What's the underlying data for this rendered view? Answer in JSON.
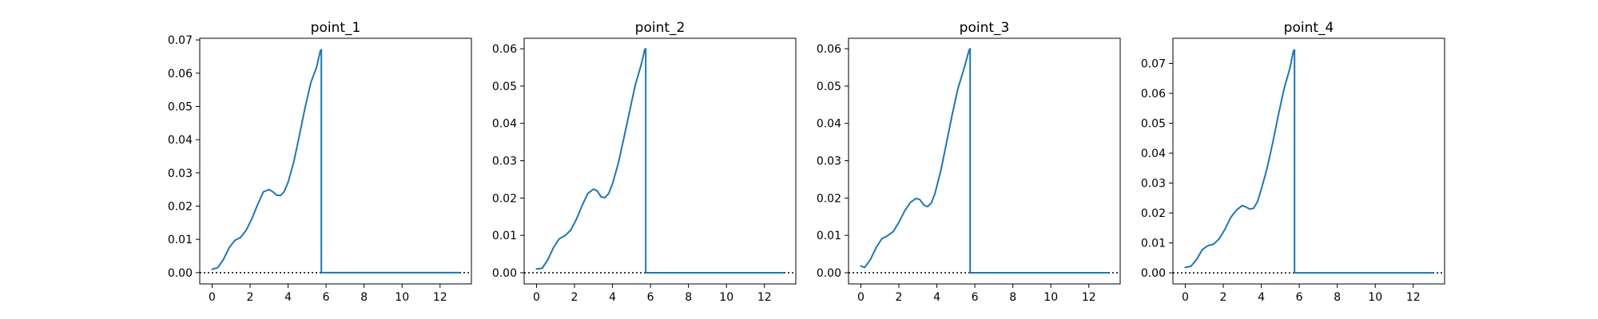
{
  "chart_data": [
    {
      "type": "line",
      "title": "point_1",
      "xlabel": "",
      "ylabel": "",
      "xlim": [
        -0.65,
        13.65
      ],
      "ylim": [
        -0.0034,
        0.0705
      ],
      "xticks": [
        0,
        2,
        4,
        6,
        8,
        10,
        12
      ],
      "yticks": [
        0.0,
        0.01,
        0.02,
        0.03,
        0.04,
        0.05,
        0.06,
        0.07
      ],
      "ytick_labels": [
        "0.00",
        "0.01",
        "0.02",
        "0.03",
        "0.04",
        "0.05",
        "0.06",
        "0.07"
      ],
      "reference_line": {
        "y": 0,
        "style": "dotted",
        "color": "#000000"
      },
      "grid": false,
      "series": [
        {
          "color": "#1f77b4",
          "x": [
            0.0,
            0.3,
            0.6,
            0.9,
            1.2,
            1.5,
            1.8,
            2.1,
            2.4,
            2.7,
            3.0,
            3.2,
            3.4,
            3.6,
            3.8,
            4.0,
            4.3,
            4.6,
            4.9,
            5.2,
            5.5,
            5.7,
            5.75,
            5.75,
            6.5,
            8.0,
            10.0,
            12.0,
            13.0
          ],
          "values": [
            0.001,
            0.0015,
            0.004,
            0.0075,
            0.0097,
            0.0106,
            0.0128,
            0.0163,
            0.0205,
            0.0243,
            0.025,
            0.0243,
            0.0233,
            0.0232,
            0.0244,
            0.0272,
            0.0333,
            0.0414,
            0.0498,
            0.0572,
            0.0618,
            0.0668,
            0.067,
            0.0,
            0.0,
            0.0,
            0.0,
            0.0,
            0.0
          ]
        }
      ]
    },
    {
      "type": "line",
      "title": "point_2",
      "xlabel": "",
      "ylabel": "",
      "xlim": [
        -0.65,
        13.65
      ],
      "ylim": [
        -0.003,
        0.0628
      ],
      "xticks": [
        0,
        2,
        4,
        6,
        8,
        10,
        12
      ],
      "yticks": [
        0.0,
        0.01,
        0.02,
        0.03,
        0.04,
        0.05,
        0.06
      ],
      "ytick_labels": [
        "0.00",
        "0.01",
        "0.02",
        "0.03",
        "0.04",
        "0.05",
        "0.06"
      ],
      "reference_line": {
        "y": 0,
        "style": "dotted",
        "color": "#000000"
      },
      "grid": false,
      "series": [
        {
          "color": "#1f77b4",
          "x": [
            0.0,
            0.3,
            0.6,
            0.9,
            1.2,
            1.5,
            1.8,
            2.1,
            2.4,
            2.7,
            3.0,
            3.2,
            3.4,
            3.6,
            3.8,
            4.0,
            4.3,
            4.6,
            4.9,
            5.2,
            5.5,
            5.7,
            5.75,
            5.75,
            6.5,
            8.0,
            10.0,
            12.0,
            13.0
          ],
          "values": [
            0.001,
            0.0012,
            0.0035,
            0.0068,
            0.0091,
            0.0099,
            0.0114,
            0.0143,
            0.018,
            0.0212,
            0.0224,
            0.0219,
            0.0203,
            0.0201,
            0.0212,
            0.0238,
            0.0292,
            0.0361,
            0.0432,
            0.0503,
            0.0555,
            0.0598,
            0.06,
            0.0,
            0.0,
            0.0,
            0.0,
            0.0,
            0.0
          ]
        }
      ]
    },
    {
      "type": "line",
      "title": "point_3",
      "xlabel": "",
      "ylabel": "",
      "xlim": [
        -0.65,
        13.65
      ],
      "ylim": [
        -0.003,
        0.0628
      ],
      "xticks": [
        0,
        2,
        4,
        6,
        8,
        10,
        12
      ],
      "yticks": [
        0.0,
        0.01,
        0.02,
        0.03,
        0.04,
        0.05,
        0.06
      ],
      "ytick_labels": [
        "0.00",
        "0.01",
        "0.02",
        "0.03",
        "0.04",
        "0.05",
        "0.06"
      ],
      "reference_line": {
        "y": 0,
        "style": "dotted",
        "color": "#000000"
      },
      "grid": false,
      "series": [
        {
          "color": "#1f77b4",
          "x": [
            0.0,
            0.2,
            0.5,
            0.8,
            1.1,
            1.4,
            1.7,
            2.0,
            2.3,
            2.6,
            2.9,
            3.1,
            3.3,
            3.5,
            3.7,
            3.9,
            4.2,
            4.5,
            4.8,
            5.1,
            5.4,
            5.7,
            5.75,
            5.75,
            6.5,
            8.0,
            10.0,
            12.0,
            13.0
          ],
          "values": [
            0.0018,
            0.0014,
            0.0035,
            0.0067,
            0.0091,
            0.0099,
            0.011,
            0.0135,
            0.0165,
            0.0188,
            0.0199,
            0.0196,
            0.0182,
            0.0177,
            0.0186,
            0.0212,
            0.0272,
            0.0346,
            0.0422,
            0.0492,
            0.0542,
            0.0597,
            0.06,
            0.0,
            0.0,
            0.0,
            0.0,
            0.0,
            0.0
          ]
        }
      ]
    },
    {
      "type": "line",
      "title": "point_4",
      "xlabel": "",
      "ylabel": "",
      "xlim": [
        -0.65,
        13.65
      ],
      "ylim": [
        -0.0037,
        0.0784
      ],
      "xticks": [
        0,
        2,
        4,
        6,
        8,
        10,
        12
      ],
      "yticks": [
        0.0,
        0.01,
        0.02,
        0.03,
        0.04,
        0.05,
        0.06,
        0.07
      ],
      "ytick_labels": [
        "0.00",
        "0.01",
        "0.02",
        "0.03",
        "0.04",
        "0.05",
        "0.06",
        "0.07"
      ],
      "reference_line": {
        "y": 0,
        "style": "dotted",
        "color": "#000000"
      },
      "grid": false,
      "series": [
        {
          "color": "#1f77b4",
          "x": [
            0.0,
            0.3,
            0.6,
            0.9,
            1.2,
            1.5,
            1.8,
            2.1,
            2.4,
            2.7,
            3.0,
            3.2,
            3.4,
            3.6,
            3.8,
            4.0,
            4.3,
            4.6,
            4.9,
            5.2,
            5.5,
            5.7,
            5.75,
            5.75,
            6.5,
            8.0,
            10.0,
            12.0,
            13.0
          ],
          "values": [
            0.0018,
            0.0022,
            0.0045,
            0.0078,
            0.0091,
            0.0096,
            0.0115,
            0.0147,
            0.0186,
            0.021,
            0.0225,
            0.022,
            0.0213,
            0.0216,
            0.0238,
            0.0279,
            0.0348,
            0.0434,
            0.0528,
            0.0615,
            0.0682,
            0.0743,
            0.0745,
            0.0,
            0.0,
            0.0,
            0.0,
            0.0,
            0.0
          ]
        }
      ]
    }
  ]
}
